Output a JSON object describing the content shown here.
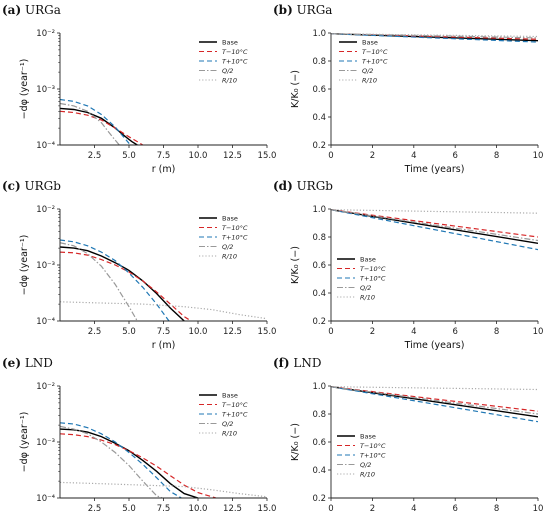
{
  "chart_data": [
    {
      "id": "a",
      "type": "line",
      "panel_label": "(a)",
      "title": "URGa",
      "xlabel": "r (m)",
      "ylabel": "−dφ (year⁻¹)",
      "yscale": "log",
      "xlim": [
        0,
        15
      ],
      "ylim": [
        0.0001,
        0.01
      ],
      "xticks": [
        "2.5",
        "5.0",
        "7.5",
        "10.0",
        "12.5",
        "15.0"
      ],
      "xtick_values": [
        2.5,
        5,
        7.5,
        10,
        12.5,
        15
      ],
      "yticks": [
        "10⁻⁴",
        "10⁻³",
        "10⁻²"
      ],
      "ytick_values": [
        0.0001,
        0.001,
        0.01
      ],
      "legend_position": "top-right",
      "series": [
        {
          "name": "Base",
          "color": "#000000",
          "dash": "solid",
          "x": [
            0,
            1,
            2,
            3,
            4,
            4.6,
            5.2,
            5.6
          ],
          "y": [
            0.00045,
            0.00043,
            0.00038,
            0.0003,
            0.0002,
            0.00015,
            0.000115,
            0.0001
          ]
        },
        {
          "name": "T−10°C",
          "color": "#d62728",
          "dash": "dashed",
          "x": [
            0,
            1,
            2,
            3,
            4,
            5,
            5.6,
            6
          ],
          "y": [
            0.0004,
            0.00038,
            0.00034,
            0.00028,
            0.0002,
            0.00014,
            0.000115,
            0.0001
          ]
        },
        {
          "name": "T+10°C",
          "color": "#1f77b4",
          "dash": "dashed",
          "x": [
            0,
            1,
            2,
            3,
            4,
            4.6,
            5.1
          ],
          "y": [
            0.00065,
            0.0006,
            0.0005,
            0.00035,
            0.00021,
            0.00014,
            0.0001
          ]
        },
        {
          "name": "Q/2",
          "color": "#999999",
          "dash": "dashdot",
          "x": [
            0,
            1,
            2,
            3,
            3.8,
            4.3
          ],
          "y": [
            0.00055,
            0.0005,
            0.0004,
            0.00025,
            0.00014,
            0.0001
          ]
        },
        {
          "name": "R/10",
          "color": "#aaaaaa",
          "dash": "dotted",
          "x": [],
          "y": []
        }
      ]
    },
    {
      "id": "b",
      "type": "line",
      "panel_label": "(b)",
      "title": "URGa",
      "xlabel": "Time (years)",
      "ylabel": "K/K₀ (−)",
      "yscale": "linear",
      "xlim": [
        0,
        10
      ],
      "ylim": [
        0.2,
        1.0
      ],
      "xticks": [
        "0",
        "2",
        "4",
        "6",
        "8",
        "10"
      ],
      "xtick_values": [
        0,
        2,
        4,
        6,
        8,
        10
      ],
      "yticks": [
        "0.2",
        "0.4",
        "0.6",
        "0.8",
        "1.0"
      ],
      "ytick_values": [
        0.2,
        0.4,
        0.6,
        0.8,
        1.0
      ],
      "legend_position": "top-left",
      "series": [
        {
          "name": "Base",
          "color": "#000000",
          "dash": "solid",
          "x": [
            0,
            10
          ],
          "y": [
            0.995,
            0.945
          ]
        },
        {
          "name": "T−10°C",
          "color": "#d62728",
          "dash": "dashed",
          "x": [
            0,
            10
          ],
          "y": [
            0.995,
            0.955
          ]
        },
        {
          "name": "T+10°C",
          "color": "#1f77b4",
          "dash": "dashed",
          "x": [
            0,
            10
          ],
          "y": [
            0.995,
            0.935
          ]
        },
        {
          "name": "Q/2",
          "color": "#999999",
          "dash": "dashdot",
          "x": [
            0,
            10
          ],
          "y": [
            0.995,
            0.965
          ]
        },
        {
          "name": "R/10",
          "color": "#aaaaaa",
          "dash": "dotted",
          "x": [
            0,
            10
          ],
          "y": [
            0.995,
            0.975
          ]
        }
      ]
    },
    {
      "id": "c",
      "type": "line",
      "panel_label": "(c)",
      "title": "URGb",
      "xlabel": "r (m)",
      "ylabel": "−dφ (year⁻¹)",
      "yscale": "log",
      "xlim": [
        0,
        15
      ],
      "ylim": [
        0.0001,
        0.01
      ],
      "xticks": [
        "2.5",
        "5.0",
        "7.5",
        "10.0",
        "12.5",
        "15.0"
      ],
      "xtick_values": [
        2.5,
        5,
        7.5,
        10,
        12.5,
        15
      ],
      "yticks": [
        "10⁻⁴",
        "10⁻³",
        "10⁻²"
      ],
      "ytick_values": [
        0.0001,
        0.001,
        0.01
      ],
      "legend_position": "top-right",
      "series": [
        {
          "name": "Base",
          "color": "#000000",
          "dash": "solid",
          "x": [
            0,
            1,
            2,
            3,
            4,
            5,
            6,
            7,
            8,
            9
          ],
          "y": [
            0.0021,
            0.002,
            0.0018,
            0.00145,
            0.0011,
            0.0008,
            0.00052,
            0.00031,
            0.00017,
            0.0001
          ]
        },
        {
          "name": "T−10°C",
          "color": "#d62728",
          "dash": "dashed",
          "x": [
            0,
            1,
            2,
            3,
            4,
            5,
            6,
            7,
            8,
            9,
            9.5
          ],
          "y": [
            0.0017,
            0.00165,
            0.0015,
            0.00125,
            0.001,
            0.00075,
            0.00052,
            0.00033,
            0.0002,
            0.00012,
            0.0001
          ]
        },
        {
          "name": "T+10°C",
          "color": "#1f77b4",
          "dash": "dashed",
          "x": [
            0,
            1,
            2,
            3,
            4,
            5,
            6,
            7,
            7.9
          ],
          "y": [
            0.0028,
            0.0026,
            0.0022,
            0.0017,
            0.0012,
            0.00072,
            0.0004,
            0.0002,
            0.0001
          ]
        },
        {
          "name": "Q/2",
          "color": "#999999",
          "dash": "dashdot",
          "x": [
            0,
            1,
            2,
            3,
            4,
            5,
            5.6
          ],
          "y": [
            0.0025,
            0.0022,
            0.0016,
            0.00095,
            0.00045,
            0.00018,
            0.0001
          ]
        },
        {
          "name": "R/10",
          "color": "#aaaaaa",
          "dash": "dotted",
          "x": [
            0,
            3,
            6,
            9,
            11,
            13,
            15
          ],
          "y": [
            0.00022,
            0.00021,
            0.0002,
            0.00018,
            0.00016,
            0.00013,
            0.00011
          ]
        }
      ]
    },
    {
      "id": "d",
      "type": "line",
      "panel_label": "(d)",
      "title": "URGb",
      "xlabel": "Time (years)",
      "ylabel": "K/K₀ (−)",
      "yscale": "linear",
      "xlim": [
        0,
        10
      ],
      "ylim": [
        0.2,
        1.0
      ],
      "xticks": [
        "0",
        "2",
        "4",
        "6",
        "8",
        "10"
      ],
      "xtick_values": [
        0,
        2,
        4,
        6,
        8,
        10
      ],
      "yticks": [
        "0.2",
        "0.4",
        "0.6",
        "0.8",
        "1.0"
      ],
      "ytick_values": [
        0.2,
        0.4,
        0.6,
        0.8,
        1.0
      ],
      "legend_position": "bottom-left",
      "series": [
        {
          "name": "Base",
          "color": "#000000",
          "dash": "solid",
          "x": [
            0,
            10
          ],
          "y": [
            0.995,
            0.755
          ]
        },
        {
          "name": "T−10°C",
          "color": "#d62728",
          "dash": "dashed",
          "x": [
            0,
            10
          ],
          "y": [
            0.995,
            0.8
          ]
        },
        {
          "name": "T+10°C",
          "color": "#1f77b4",
          "dash": "dashed",
          "x": [
            0,
            10
          ],
          "y": [
            0.995,
            0.71
          ]
        },
        {
          "name": "Q/2",
          "color": "#999999",
          "dash": "dashdot",
          "x": [
            0,
            10
          ],
          "y": [
            0.995,
            0.775
          ]
        },
        {
          "name": "R/10",
          "color": "#aaaaaa",
          "dash": "dotted",
          "x": [
            0,
            10
          ],
          "y": [
            0.995,
            0.97
          ]
        }
      ]
    },
    {
      "id": "e",
      "type": "line",
      "panel_label": "(e)",
      "title": "LND",
      "xlabel": "r (m)",
      "ylabel": "−dφ (year⁻¹)",
      "yscale": "log",
      "xlim": [
        0,
        15
      ],
      "ylim": [
        0.0001,
        0.01
      ],
      "xticks": [
        "2.5",
        "5.0",
        "7.5",
        "10.0",
        "12.5",
        "15.0"
      ],
      "xtick_values": [
        2.5,
        5,
        7.5,
        10,
        12.5,
        15
      ],
      "yticks": [
        "10⁻⁴",
        "10⁻³",
        "10⁻²"
      ],
      "ytick_values": [
        0.0001,
        0.001,
        0.01
      ],
      "legend_position": "top-right",
      "series": [
        {
          "name": "Base",
          "color": "#000000",
          "dash": "solid",
          "x": [
            0,
            1,
            2,
            3,
            4,
            5,
            6,
            7,
            8,
            9,
            10
          ],
          "y": [
            0.0017,
            0.00165,
            0.0015,
            0.00125,
            0.00095,
            0.0007,
            0.00047,
            0.0003,
            0.00018,
            0.00012,
            0.0001
          ]
        },
        {
          "name": "T−10°C",
          "color": "#d62728",
          "dash": "dashed",
          "x": [
            0,
            1,
            2,
            3,
            4,
            5,
            6,
            7,
            8,
            9,
            10,
            11.3
          ],
          "y": [
            0.0014,
            0.00135,
            0.00125,
            0.00108,
            0.0009,
            0.0007,
            0.00052,
            0.00037,
            0.00025,
            0.00017,
            0.000125,
            0.0001
          ]
        },
        {
          "name": "T+10°C",
          "color": "#1f77b4",
          "dash": "dashed",
          "x": [
            0,
            1,
            2,
            3,
            4,
            5,
            6,
            7,
            8,
            8.8
          ],
          "y": [
            0.0022,
            0.0021,
            0.0018,
            0.0014,
            0.001,
            0.00065,
            0.0004,
            0.00023,
            0.00013,
            0.0001
          ]
        },
        {
          "name": "Q/2",
          "color": "#999999",
          "dash": "dashdot",
          "x": [
            0,
            1,
            2,
            3,
            4,
            5,
            6,
            7,
            7.4
          ],
          "y": [
            0.0019,
            0.0017,
            0.0014,
            0.001,
            0.00065,
            0.00038,
            0.0002,
            0.00011,
            0.0001
          ]
        },
        {
          "name": "R/10",
          "color": "#aaaaaa",
          "dash": "dotted",
          "x": [
            0,
            3,
            6,
            9,
            11,
            13,
            15
          ],
          "y": [
            0.00019,
            0.00018,
            0.00017,
            0.00016,
            0.00014,
            0.00012,
            0.000105
          ]
        }
      ]
    },
    {
      "id": "f",
      "type": "line",
      "panel_label": "(f)",
      "title": "LND",
      "xlabel": "Time (years)",
      "ylabel": "K/K₀ (−)",
      "yscale": "linear",
      "xlim": [
        0,
        10
      ],
      "ylim": [
        0.2,
        1.0
      ],
      "xticks": [
        "0",
        "2",
        "4",
        "6",
        "8",
        "10"
      ],
      "xtick_values": [
        0,
        2,
        4,
        6,
        8,
        10
      ],
      "yticks": [
        "0.2",
        "0.4",
        "0.6",
        "0.8",
        "1.0"
      ],
      "ytick_values": [
        0.2,
        0.4,
        0.6,
        0.8,
        1.0
      ],
      "legend_position": "bottom-left",
      "series": [
        {
          "name": "Base",
          "color": "#000000",
          "dash": "solid",
          "x": [
            0,
            10
          ],
          "y": [
            0.995,
            0.78
          ]
        },
        {
          "name": "T−10°C",
          "color": "#d62728",
          "dash": "dashed",
          "x": [
            0,
            10
          ],
          "y": [
            0.995,
            0.82
          ]
        },
        {
          "name": "T+10°C",
          "color": "#1f77b4",
          "dash": "dashed",
          "x": [
            0,
            10
          ],
          "y": [
            0.995,
            0.745
          ]
        },
        {
          "name": "Q/2",
          "color": "#999999",
          "dash": "dashdot",
          "x": [
            0,
            10
          ],
          "y": [
            0.995,
            0.8
          ]
        },
        {
          "name": "R/10",
          "color": "#aaaaaa",
          "dash": "dotted",
          "x": [
            0,
            10
          ],
          "y": [
            0.995,
            0.975
          ]
        }
      ]
    }
  ]
}
